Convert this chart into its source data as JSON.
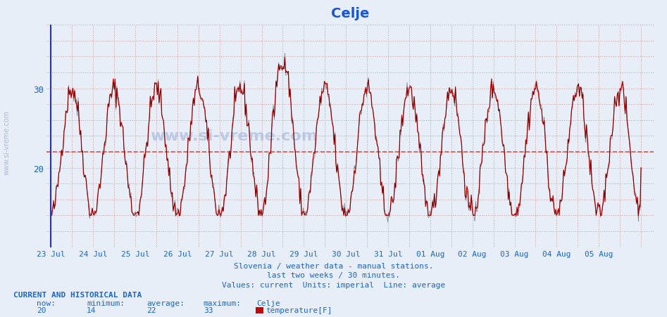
{
  "title": "Celje",
  "title_color": "#1a56cc",
  "title_fontsize": 14,
  "background_color": "#e8eef8",
  "plot_background": "#e8eef8",
  "xlabel": "",
  "ylabel": "",
  "ylim": [
    10,
    38
  ],
  "yticks": [
    20,
    30
  ],
  "average_value": 22,
  "now": 20,
  "minimum": 14,
  "average": 22,
  "maximum": 33,
  "n_points": 672,
  "days": [
    "23 Jul",
    "24 Jul",
    "25 Jul",
    "26 Jul",
    "27 Jul",
    "28 Jul",
    "29 Jul",
    "30 Jul",
    "31 Jul",
    "01 Aug",
    "02 Aug",
    "03 Aug",
    "04 Aug",
    "05 Aug"
  ],
  "subtitle1": "Slovenia / weather data - manual stations.",
  "subtitle2": "last two weeks / 30 minutes.",
  "subtitle3": "Values: current  Units: imperial  Line: average",
  "footer_label": "CURRENT AND HISTORICAL DATA",
  "col_now": "now:",
  "col_min": "minimum:",
  "col_avg": "average:",
  "col_max": "maximum:",
  "station": "Celje",
  "series_label": "temperature[F]",
  "red_color": "#cc0000",
  "black_color": "#000000",
  "dashed_color": "#dd4444",
  "blue_axis_color": "#2233cc",
  "grid_color": "#cc8888",
  "text_color": "#1a66cc",
  "watermark_color": "#aabbdd"
}
